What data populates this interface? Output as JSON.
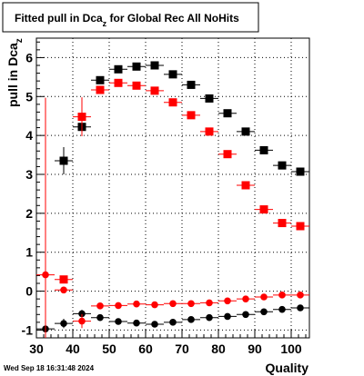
{
  "chart_data": {
    "type": "scatter",
    "title": "Fitted pull in Dca_z for Global Rec All NoHits",
    "title_main": "Fitted pull in Dca",
    "title_sub": "z",
    "title_rest": " for Global Rec All NoHits",
    "xlabel": "Quality",
    "ylabel": "pull in Dca_z",
    "ylabel_main": "pull in Dca",
    "ylabel_sub": "z",
    "xlim": [
      30,
      105
    ],
    "ylim": [
      -1.2,
      6.5
    ],
    "xticks": [
      30,
      40,
      50,
      60,
      70,
      80,
      90,
      100
    ],
    "yticks": [
      -1,
      0,
      1,
      2,
      3,
      4,
      5,
      6
    ],
    "grid": true,
    "timestamp": "Wed Sep 18 16:31:48 2024",
    "series": [
      {
        "color": "#000000",
        "marker": "square",
        "points": [
          {
            "x": 37.5,
            "y": 3.35,
            "ey": 0.35
          },
          {
            "x": 42.5,
            "y": 4.22,
            "ey": 0.12
          },
          {
            "x": 47.5,
            "y": 5.42,
            "ey": 0.05
          },
          {
            "x": 52.5,
            "y": 5.7,
            "ey": 0.03
          },
          {
            "x": 57.5,
            "y": 5.77,
            "ey": 0.03
          },
          {
            "x": 62.5,
            "y": 5.8,
            "ey": 0.03
          },
          {
            "x": 67.5,
            "y": 5.57,
            "ey": 0.03
          },
          {
            "x": 72.5,
            "y": 5.3,
            "ey": 0.03
          },
          {
            "x": 77.5,
            "y": 4.95,
            "ey": 0.03
          },
          {
            "x": 82.5,
            "y": 4.57,
            "ey": 0.03
          },
          {
            "x": 87.5,
            "y": 4.1,
            "ey": 0.03
          },
          {
            "x": 92.5,
            "y": 3.62,
            "ey": 0.03
          },
          {
            "x": 97.5,
            "y": 3.23,
            "ey": 0.03
          },
          {
            "x": 102.5,
            "y": 3.07,
            "ey": 0.03
          }
        ]
      },
      {
        "color": "#ff0000",
        "marker": "square",
        "points": [
          {
            "x": 37.5,
            "y": 0.3,
            "ey": 0.06
          },
          {
            "x": 42.5,
            "y": 4.48,
            "ey": 0.5
          },
          {
            "x": 47.5,
            "y": 5.17,
            "ey": 0.1
          },
          {
            "x": 52.5,
            "y": 5.35,
            "ey": 0.04
          },
          {
            "x": 57.5,
            "y": 5.28,
            "ey": 0.03
          },
          {
            "x": 62.5,
            "y": 5.15,
            "ey": 0.03
          },
          {
            "x": 67.5,
            "y": 4.85,
            "ey": 0.03
          },
          {
            "x": 72.5,
            "y": 4.52,
            "ey": 0.03
          },
          {
            "x": 77.5,
            "y": 4.1,
            "ey": 0.03
          },
          {
            "x": 82.5,
            "y": 3.52,
            "ey": 0.03
          },
          {
            "x": 87.5,
            "y": 2.72,
            "ey": 0.03
          },
          {
            "x": 92.5,
            "y": 2.1,
            "ey": 0.03
          },
          {
            "x": 97.5,
            "y": 1.75,
            "ey": 0.03
          },
          {
            "x": 102.5,
            "y": 1.67,
            "ey": 0.03
          }
        ]
      },
      {
        "color": "#000000",
        "marker": "circle",
        "points": [
          {
            "x": 32.5,
            "y": -0.97,
            "ey": 0.25
          },
          {
            "x": 37.5,
            "y": -0.83,
            "ey": 0.12
          },
          {
            "x": 42.5,
            "y": -0.58,
            "ey": 0.1
          },
          {
            "x": 47.5,
            "y": -0.68,
            "ey": 0.04
          },
          {
            "x": 52.5,
            "y": -0.78,
            "ey": 0.03
          },
          {
            "x": 57.5,
            "y": -0.82,
            "ey": 0.03
          },
          {
            "x": 62.5,
            "y": -0.85,
            "ey": 0.03
          },
          {
            "x": 67.5,
            "y": -0.8,
            "ey": 0.03
          },
          {
            "x": 72.5,
            "y": -0.73,
            "ey": 0.03
          },
          {
            "x": 77.5,
            "y": -0.68,
            "ey": 0.03
          },
          {
            "x": 82.5,
            "y": -0.65,
            "ey": 0.03
          },
          {
            "x": 87.5,
            "y": -0.6,
            "ey": 0.03
          },
          {
            "x": 92.5,
            "y": -0.53,
            "ey": 0.03
          },
          {
            "x": 97.5,
            "y": -0.47,
            "ey": 0.03
          },
          {
            "x": 102.5,
            "y": -0.43,
            "ey": 0.03
          }
        ]
      },
      {
        "color": "#ff0000",
        "marker": "circle",
        "points": [
          {
            "x": 32.5,
            "y": 0.42,
            "ey": 4.55
          },
          {
            "x": 37.5,
            "y": 0.03,
            "ey": 0.05
          },
          {
            "x": 42.5,
            "y": -0.77,
            "ey": 0.18
          },
          {
            "x": 47.5,
            "y": -0.38,
            "ey": 0.06
          },
          {
            "x": 52.5,
            "y": -0.37,
            "ey": 0.03
          },
          {
            "x": 57.5,
            "y": -0.33,
            "ey": 0.03
          },
          {
            "x": 62.5,
            "y": -0.35,
            "ey": 0.03
          },
          {
            "x": 67.5,
            "y": -0.32,
            "ey": 0.03
          },
          {
            "x": 72.5,
            "y": -0.32,
            "ey": 0.03
          },
          {
            "x": 77.5,
            "y": -0.3,
            "ey": 0.03
          },
          {
            "x": 82.5,
            "y": -0.25,
            "ey": 0.03
          },
          {
            "x": 87.5,
            "y": -0.2,
            "ey": 0.03
          },
          {
            "x": 92.5,
            "y": -0.15,
            "ey": 0.03
          },
          {
            "x": 97.5,
            "y": -0.1,
            "ey": 0.03
          },
          {
            "x": 102.5,
            "y": -0.1,
            "ey": 0.03
          }
        ]
      }
    ]
  }
}
